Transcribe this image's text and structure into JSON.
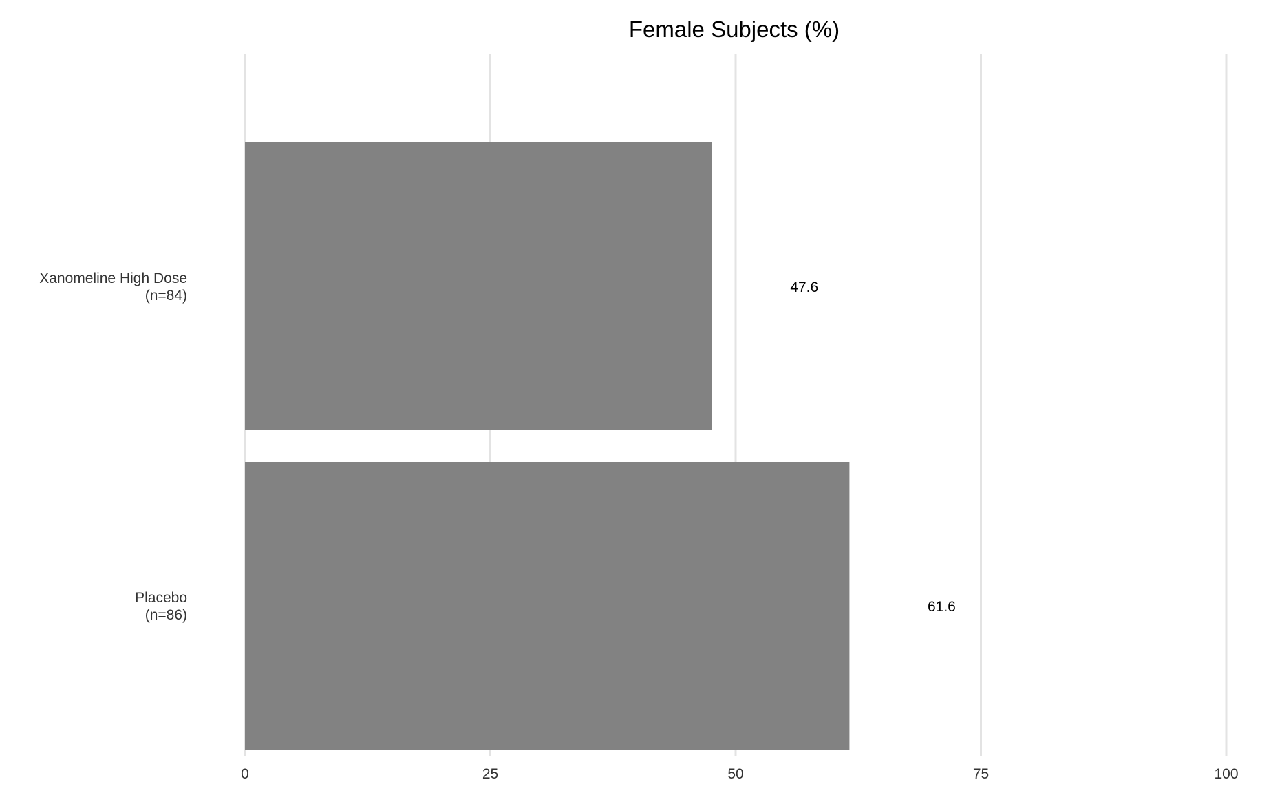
{
  "chart_data": {
    "type": "bar",
    "orientation": "horizontal",
    "title": "Female Subjects (%)",
    "xlabel": "",
    "ylabel": "",
    "categories": [
      {
        "name": "Xanomeline High Dose",
        "n": "(n=84)"
      },
      {
        "name": "Placebo",
        "n": "(n=86)"
      }
    ],
    "values": [
      47.6,
      61.6
    ],
    "data_labels": [
      "47.6",
      "61.6"
    ],
    "xlim": [
      0,
      100
    ],
    "x_ticks": [
      0,
      25,
      50,
      75,
      100
    ],
    "x_tick_labels": [
      "0",
      "25",
      "50",
      "75",
      "100"
    ],
    "grid": true,
    "legend": "none",
    "colors": {
      "bar": "#7f7f7f",
      "grid": "#e3e3e3",
      "text": "#333333"
    }
  }
}
